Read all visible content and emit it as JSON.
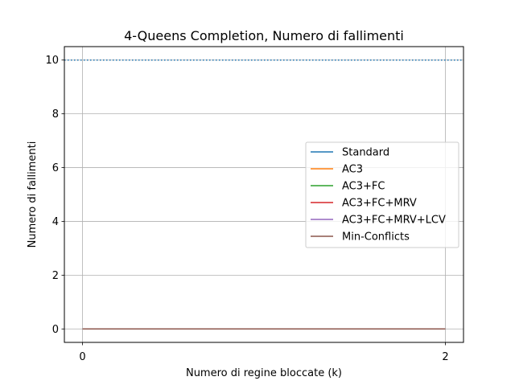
{
  "chart_data": {
    "type": "line",
    "title": "4-Queens Completion, Numero di fallimenti",
    "xlabel": "Numero di regine bloccate (k)",
    "ylabel": "Numero di fallimenti",
    "x": [
      0,
      2
    ],
    "xticks": [
      "0",
      "2"
    ],
    "yticks": [
      "0",
      "2",
      "4",
      "6",
      "8",
      "10"
    ],
    "xlim": [
      -0.1,
      2.1
    ],
    "ylim": [
      -0.5,
      10.5
    ],
    "grid": true,
    "legend_position": "center-right",
    "reference_line": {
      "y": 10,
      "style": "dotted",
      "color": "#1f77b4"
    },
    "series": [
      {
        "name": "Standard",
        "color": "#1f77b4",
        "values": [
          0,
          0
        ]
      },
      {
        "name": "AC3",
        "color": "#ff7f0e",
        "values": [
          0,
          0
        ]
      },
      {
        "name": "AC3+FC",
        "color": "#2ca02c",
        "values": [
          0,
          0
        ]
      },
      {
        "name": "AC3+FC+MRV",
        "color": "#d62728",
        "values": [
          0,
          0
        ]
      },
      {
        "name": "AC3+FC+MRV+LCV",
        "color": "#9467bd",
        "values": [
          0,
          0
        ]
      },
      {
        "name": "Min-Conflicts",
        "color": "#8c564b",
        "values": [
          0,
          0
        ]
      }
    ]
  }
}
